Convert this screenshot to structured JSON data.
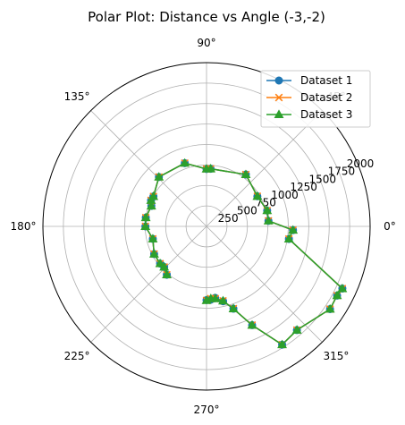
{
  "chart_data": {
    "type": "line",
    "projection": "polar",
    "title": "Polar Plot: Distance vs Angle (-3,-2)",
    "angle_ticks": [
      {
        "deg": 0,
        "label": "0°"
      },
      {
        "deg": 45,
        "label": "45°"
      },
      {
        "deg": 90,
        "label": "90°"
      },
      {
        "deg": 135,
        "label": "135°"
      },
      {
        "deg": 180,
        "label": "180°"
      },
      {
        "deg": 225,
        "label": "225°"
      },
      {
        "deg": 270,
        "label": "270°"
      },
      {
        "deg": 315,
        "label": "315°"
      }
    ],
    "r_ticks": [
      250,
      500,
      750,
      1000,
      1250,
      1500,
      1750,
      2000
    ],
    "r_tick_labels": [
      "250",
      "500",
      "750",
      "1000",
      "1250",
      "1500",
      "1750",
      "2000"
    ],
    "rlim": [
      0,
      2000
    ],
    "r_label_angle_deg": 22.5,
    "grid": true,
    "legend_position": "top-right",
    "series": [
      {
        "name": "Dataset 1",
        "color": "#1f77b4",
        "marker": "circle",
        "points": [
          [
            -90.0,
            900
          ],
          [
            -86.6,
            896
          ],
          [
            -83.1,
            880
          ],
          [
            -77.5,
            937
          ],
          [
            -71.9,
            1058
          ],
          [
            -65.2,
            1329
          ],
          [
            -57.4,
            1715
          ],
          [
            -48.9,
            1681
          ],
          [
            -33.8,
            1817
          ],
          [
            -27.9,
            1806
          ],
          [
            -24.6,
            1826
          ],
          [
            -8.7,
            1019
          ],
          [
            -2.5,
            1058
          ],
          [
            5.1,
            760
          ],
          [
            14.6,
            766
          ],
          [
            30.6,
            722
          ],
          [
            52.8,
            795
          ],
          [
            85.9,
            705
          ],
          [
            90.0,
            701
          ],
          [
            109.0,
            817
          ],
          [
            134.0,
            838
          ],
          [
            150.6,
            745
          ],
          [
            154.9,
            749
          ],
          [
            159.7,
            719
          ],
          [
            171.8,
            750
          ],
          [
            180.0,
            747
          ],
          [
            193.1,
            674
          ],
          [
            207.8,
            724
          ],
          [
            218.7,
            727
          ],
          [
            223.8,
            717
          ],
          [
            230.6,
            765
          ]
        ]
      },
      {
        "name": "Dataset 2",
        "color": "#ff7f0e",
        "marker": "x",
        "points": [
          [
            -90.0,
            905
          ],
          [
            -86.6,
            884
          ],
          [
            -83.1,
            889
          ],
          [
            -77.5,
            932
          ],
          [
            -71.9,
            1058
          ],
          [
            -65.2,
            1329
          ],
          [
            -57.4,
            1715
          ],
          [
            -48.9,
            1681
          ],
          [
            -33.8,
            1817
          ],
          [
            -27.9,
            1806
          ],
          [
            -24.6,
            1826
          ],
          [
            -8.7,
            1019
          ],
          [
            -2.5,
            1058
          ],
          [
            5.1,
            760
          ],
          [
            14.6,
            766
          ],
          [
            30.6,
            722
          ],
          [
            52.8,
            795
          ],
          [
            85.9,
            705
          ],
          [
            90.0,
            701
          ],
          [
            109.0,
            817
          ],
          [
            134.0,
            838
          ],
          [
            150.6,
            745
          ],
          [
            154.9,
            749
          ],
          [
            159.7,
            719
          ],
          [
            171.8,
            750
          ],
          [
            180.0,
            747
          ],
          [
            193.1,
            674
          ],
          [
            207.8,
            724
          ],
          [
            218.7,
            727
          ],
          [
            223.8,
            717
          ],
          [
            230.6,
            765
          ]
        ]
      },
      {
        "name": "Dataset 3",
        "color": "#2ca02c",
        "marker": "triangle",
        "points": [
          [
            -90.0,
            905
          ],
          [
            -86.6,
            884
          ],
          [
            -83.1,
            889
          ],
          [
            -77.5,
            932
          ],
          [
            -71.9,
            1058
          ],
          [
            -65.2,
            1329
          ],
          [
            -57.4,
            1715
          ],
          [
            -48.9,
            1681
          ],
          [
            -33.8,
            1817
          ],
          [
            -27.9,
            1806
          ],
          [
            -24.6,
            1826
          ],
          [
            -8.7,
            1019
          ],
          [
            -2.5,
            1058
          ],
          [
            5.1,
            760
          ],
          [
            14.6,
            766
          ],
          [
            30.6,
            722
          ],
          [
            52.8,
            795
          ],
          [
            85.9,
            705
          ],
          [
            90.0,
            701
          ],
          [
            109.0,
            817
          ],
          [
            134.0,
            838
          ],
          [
            150.6,
            745
          ],
          [
            154.9,
            749
          ],
          [
            159.7,
            719
          ],
          [
            171.8,
            750
          ],
          [
            180.0,
            747
          ],
          [
            193.1,
            674
          ],
          [
            207.8,
            724
          ],
          [
            218.7,
            727
          ],
          [
            223.8,
            717
          ],
          [
            230.6,
            765
          ]
        ]
      }
    ]
  }
}
